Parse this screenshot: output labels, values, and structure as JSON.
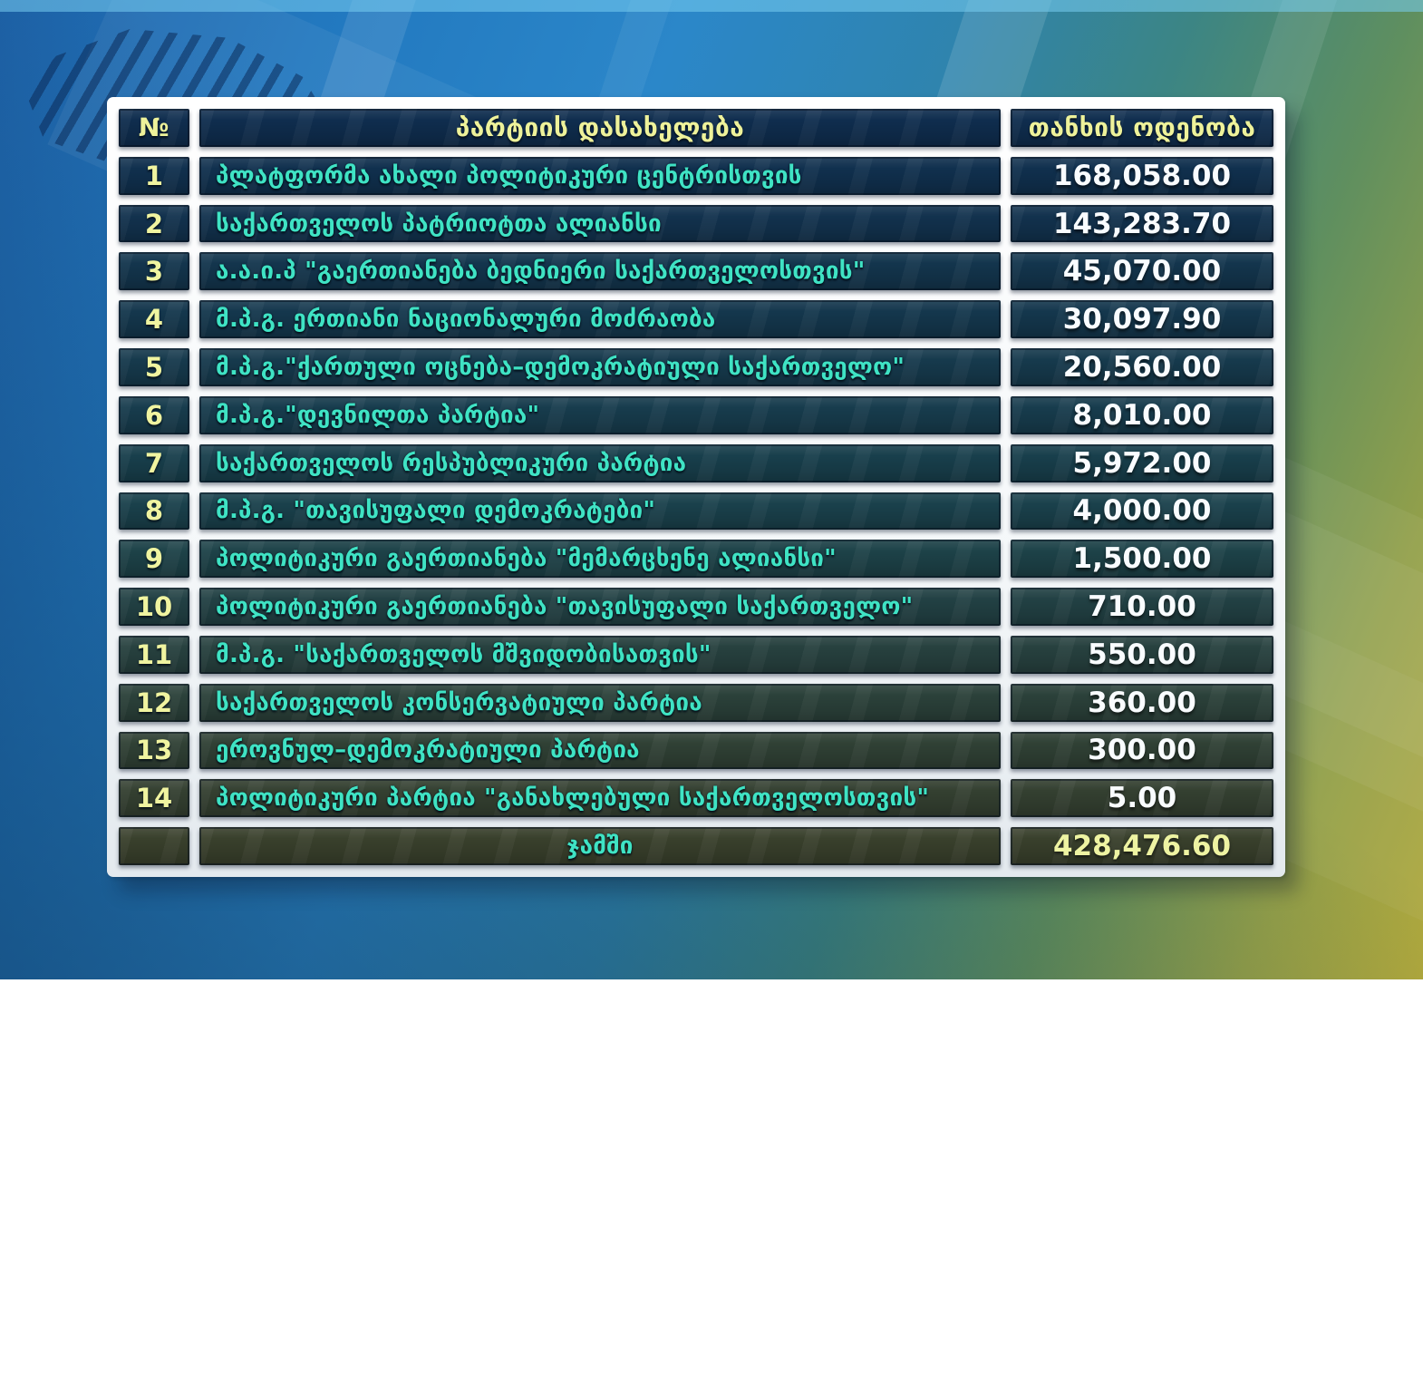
{
  "table": {
    "headers": {
      "num": "№",
      "name": "პარტიის დასახელება",
      "amount": "თანხის ოდენობა"
    },
    "rows": [
      {
        "num": "1",
        "name": "პლატფორმა ახალი პოლიტიკური ცენტრისთვის",
        "amount": "168,058.00"
      },
      {
        "num": "2",
        "name": "საქართველოს პატრიოტთა ალიანსი",
        "amount": "143,283.70"
      },
      {
        "num": "3",
        "name": "ა.ა.ი.პ \"გაერთიანება ბედნიერი საქართველოსთვის\"",
        "amount": "45,070.00"
      },
      {
        "num": "4",
        "name": "მ.პ.გ. ერთიანი ნაციონალური მოძრაობა",
        "amount": "30,097.90"
      },
      {
        "num": "5",
        "name": "მ.პ.გ.\"ქართული ოცნება–დემოკრატიული საქართველო\"",
        "amount": "20,560.00"
      },
      {
        "num": "6",
        "name": "მ.პ.გ.\"დევნილთა პარტია\"",
        "amount": "8,010.00"
      },
      {
        "num": "7",
        "name": "საქართველოს რესპუბლიკური პარტია",
        "amount": "5,972.00"
      },
      {
        "num": "8",
        "name": "მ.პ.გ. \"თავისუფალი დემოკრატები\"",
        "amount": "4,000.00"
      },
      {
        "num": "9",
        "name": "პოლიტიკური გაერთიანება \"მემარცხენე ალიანსი\"",
        "amount": "1,500.00"
      },
      {
        "num": "10",
        "name": "პოლიტიკური გაერთიანება \"თავისუფალი საქართველო\"",
        "amount": "710.00"
      },
      {
        "num": "11",
        "name": "მ.პ.გ.  \"საქართველოს მშვიდობისათვის\"",
        "amount": "550.00"
      },
      {
        "num": "12",
        "name": "საქართველოს კონსერვატიული პარტია",
        "amount": "360.00"
      },
      {
        "num": "13",
        "name": "ეროვნულ–დემოკრატიული პარტია",
        "amount": "300.00"
      },
      {
        "num": "14",
        "name": "პოლიტიკური პარტია \"განახლებული საქართველოსთვის\"",
        "amount": "5.00"
      }
    ],
    "total": {
      "label": "ჯამში",
      "amount": "428,476.60"
    }
  },
  "chart_data": {
    "type": "table",
    "title": "",
    "columns": [
      "№",
      "პარტიის დასახელება",
      "თანხის ოდენობა"
    ],
    "categories": [
      "პლატფორმა ახალი პოლიტიკური ცენტრისთვის",
      "საქართველოს პატრიოტთა ალიანსი",
      "ა.ა.ი.პ \"გაერთიანება ბედნიერი საქართველოსთვის\"",
      "მ.პ.გ. ერთიანი ნაციონალური მოძრაობა",
      "მ.პ.გ.\"ქართული ოცნება–დემოკრატიული საქართველო\"",
      "მ.პ.გ.\"დევნილთა პარტია\"",
      "საქართველოს რესპუბლიკური პარტია",
      "მ.პ.გ. \"თავისუფალი დემოკრატები\"",
      "პოლიტიკური გაერთიანება \"მემარცხენე ალიანსი\"",
      "პოლიტიკური გაერთიანება \"თავისუფალი საქართველო\"",
      "მ.პ.გ.  \"საქართველოს მშვიდობისათვის\"",
      "საქართველოს კონსერვატიული პარტია",
      "ეროვნულ–დემოკრატიული პარტია",
      "პოლიტიკური პარტია \"განახლებული საქართველოსთვის\""
    ],
    "values": [
      168058.0,
      143283.7,
      45070.0,
      30097.9,
      20560.0,
      8010.0,
      5972.0,
      4000.0,
      1500.0,
      710.0,
      550.0,
      360.0,
      300.0,
      5.0
    ],
    "total": {
      "label": "ჯამში",
      "value": 428476.6
    }
  },
  "colors": {
    "party_name_teal": "#3fe3c4",
    "number_yellow": "#f0f4a0",
    "amount_white": "#f9fcff",
    "header_yellow": "#eef29a",
    "bg_blue_top": "#2278bf",
    "bg_olive_bottom": "#b2aa3d",
    "cell_navy_top": "#0f2d4e",
    "cell_olive_bottom": "#393f2c"
  }
}
